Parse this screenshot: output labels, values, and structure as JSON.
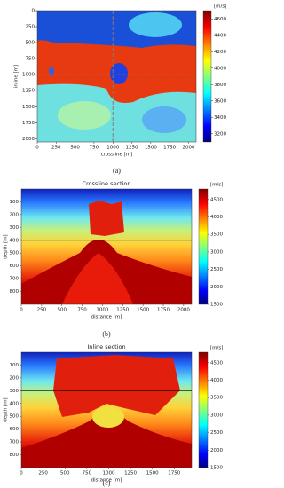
{
  "panels": [
    {
      "caption": "(a)",
      "xlabel": "crossline [m]",
      "ylabel": "inline [m]",
      "xlim": [
        0,
        2100
      ],
      "ylim": [
        0,
        2050
      ],
      "xticks": [
        0,
        250,
        500,
        750,
        1000,
        1250,
        1500,
        1750,
        2000
      ],
      "yticks": [
        0,
        250,
        500,
        750,
        1000,
        1250,
        1500,
        1750,
        2000
      ],
      "colorbar": {
        "label": "[m/s]",
        "lim": [
          3100,
          4700
        ],
        "ticks": [
          3200,
          3400,
          3600,
          3800,
          4000,
          4200,
          4400,
          4600
        ]
      },
      "crossline_section": 1000,
      "inline_section": 1000
    },
    {
      "caption": "(b)",
      "title": "Crossline section",
      "xlabel": "distance [m]",
      "ylabel": "depth [m]",
      "xlim": [
        0,
        2100
      ],
      "ylim": [
        0,
        900
      ],
      "xticks": [
        0,
        250,
        500,
        750,
        1000,
        1250,
        1500,
        1750,
        2000
      ],
      "yticks": [
        100,
        200,
        300,
        400,
        500,
        600,
        700,
        800
      ],
      "colorbar": {
        "label": "[m/s]",
        "lim": [
          1500,
          4800
        ],
        "ticks": [
          1500,
          2000,
          2500,
          3000,
          3500,
          4000,
          4500
        ]
      },
      "section_depth": 400
    },
    {
      "caption": "(c)",
      "title": "Inline section",
      "xlabel": "distance [m]",
      "ylabel": "depth [m]",
      "xlim": [
        0,
        1950
      ],
      "ylim": [
        0,
        900
      ],
      "xticks": [
        0,
        250,
        500,
        750,
        1000,
        1250,
        1500,
        1750
      ],
      "yticks": [
        100,
        200,
        300,
        400,
        500,
        600,
        700,
        800
      ],
      "colorbar": {
        "label": "[m/s]",
        "lim": [
          1500,
          4800
        ],
        "ticks": [
          1500,
          2000,
          2500,
          3000,
          3500,
          4000,
          4500
        ]
      },
      "section_depth": 300
    }
  ]
}
